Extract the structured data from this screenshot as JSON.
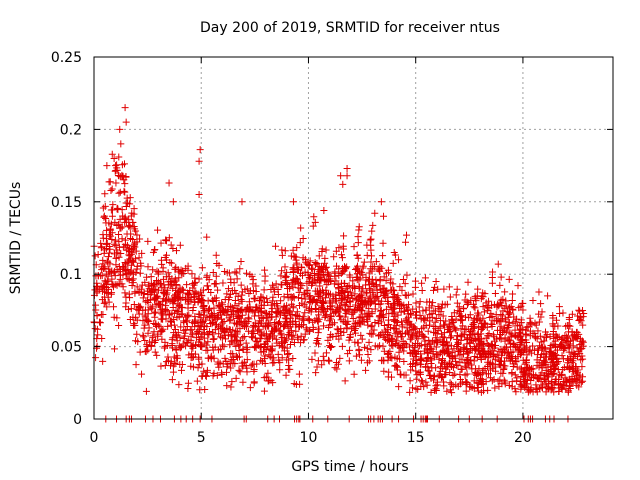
{
  "chart_data": {
    "type": "scatter",
    "title": "Day 200 of 2019, SRMTID for receiver ntus",
    "xlabel": "GPS time / hours",
    "ylabel": "SRMTID / TECUs",
    "xlim": [
      0,
      24.2
    ],
    "ylim": [
      0,
      0.25
    ],
    "x_ticks": [
      0,
      5,
      10,
      15,
      20
    ],
    "x_tick_labels": [
      "0",
      "5",
      "10",
      "15",
      "20"
    ],
    "y_ticks": [
      0,
      0.05,
      0.1,
      0.15,
      0.2,
      0.25
    ],
    "y_tick_labels": [
      "0",
      "0.05",
      "0.1",
      "0.15",
      "0.2",
      "0.25"
    ],
    "grid": true,
    "marker": "+",
    "marker_color": "#e00000",
    "series": [
      {
        "name": "SRMTID",
        "trend_points": [
          [
            0.0,
            0.07
          ],
          [
            0.5,
            0.1
          ],
          [
            1.0,
            0.12
          ],
          [
            1.4,
            0.13
          ],
          [
            1.8,
            0.1
          ],
          [
            2.5,
            0.075
          ],
          [
            3.5,
            0.08
          ],
          [
            4.5,
            0.07
          ],
          [
            5.5,
            0.065
          ],
          [
            7.0,
            0.065
          ],
          [
            8.0,
            0.06
          ],
          [
            9.0,
            0.07
          ],
          [
            10.0,
            0.085
          ],
          [
            11.0,
            0.08
          ],
          [
            12.0,
            0.08
          ],
          [
            13.0,
            0.08
          ],
          [
            14.0,
            0.07
          ],
          [
            15.0,
            0.055
          ],
          [
            16.0,
            0.05
          ],
          [
            17.5,
            0.05
          ],
          [
            19.0,
            0.055
          ],
          [
            20.0,
            0.045
          ],
          [
            21.0,
            0.04
          ],
          [
            22.0,
            0.04
          ],
          [
            22.8,
            0.045
          ]
        ],
        "spread": 0.022,
        "count": 3200,
        "x_range": [
          0.0,
          22.85
        ],
        "notable_points": [
          [
            1.45,
            0.215
          ],
          [
            1.5,
            0.205
          ],
          [
            1.2,
            0.2
          ],
          [
            1.25,
            0.19
          ],
          [
            1.0,
            0.175
          ],
          [
            0.6,
            0.175
          ],
          [
            4.95,
            0.186
          ],
          [
            4.9,
            0.178
          ],
          [
            4.9,
            0.155
          ],
          [
            3.5,
            0.163
          ],
          [
            3.7,
            0.15
          ],
          [
            6.9,
            0.15
          ],
          [
            9.3,
            0.15
          ],
          [
            11.5,
            0.168
          ],
          [
            11.6,
            0.162
          ],
          [
            11.8,
            0.173
          ],
          [
            11.8,
            0.168
          ],
          [
            13.4,
            0.15
          ],
          [
            14.0,
            0.115
          ],
          [
            14.2,
            0.11
          ],
          [
            15.95,
            0.095
          ],
          [
            18.85,
            0.107
          ],
          [
            21.15,
            0.085
          ],
          [
            13.5,
            0.14
          ],
          [
            12.9,
            0.12
          ]
        ],
        "zero_points_x": [
          0.55,
          1.05,
          1.5,
          1.65,
          1.75,
          2.4,
          2.75,
          3.1,
          3.75,
          4.05,
          4.3,
          4.6,
          4.95,
          5.5,
          7.0,
          7.1,
          8.1,
          8.4,
          8.65,
          9.35,
          9.45,
          9.55,
          9.6,
          10.2,
          10.9,
          11.9,
          12.8,
          12.9,
          13.05,
          13.25,
          13.35,
          13.45,
          13.9,
          14.2,
          14.9,
          15.25,
          15.35,
          15.45,
          15.5,
          15.55,
          16.1,
          17.0,
          17.5,
          18.1,
          18.8,
          20.05,
          20.25,
          20.35,
          20.45,
          21.05,
          21.25,
          21.45,
          22.1
        ]
      }
    ]
  }
}
